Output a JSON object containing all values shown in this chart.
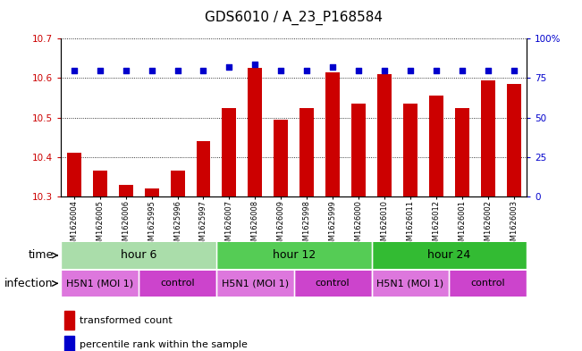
{
  "title": "GDS6010 / A_23_P168584",
  "samples": [
    "GSM1626004",
    "GSM1626005",
    "GSM1626006",
    "GSM1625995",
    "GSM1625996",
    "GSM1625997",
    "GSM1626007",
    "GSM1626008",
    "GSM1626009",
    "GSM1625998",
    "GSM1625999",
    "GSM1626000",
    "GSM1626010",
    "GSM1626011",
    "GSM1626012",
    "GSM1626001",
    "GSM1626002",
    "GSM1626003"
  ],
  "bar_values": [
    10.41,
    10.365,
    10.33,
    10.32,
    10.365,
    10.44,
    10.525,
    10.625,
    10.495,
    10.525,
    10.615,
    10.535,
    10.61,
    10.535,
    10.555,
    10.525,
    10.595,
    10.585
  ],
  "dot_values": [
    80,
    80,
    80,
    80,
    80,
    80,
    82,
    84,
    80,
    80,
    82,
    80,
    80,
    80,
    80,
    80,
    80,
    80
  ],
  "ylim_left": [
    10.3,
    10.7
  ],
  "ylim_right": [
    0,
    100
  ],
  "yticks_left": [
    10.3,
    10.4,
    10.5,
    10.6,
    10.7
  ],
  "yticks_right": [
    0,
    25,
    50,
    75,
    100
  ],
  "ytick_right_labels": [
    "0",
    "25",
    "50",
    "75",
    "100%"
  ],
  "bar_color": "#cc0000",
  "dot_color": "#0000cc",
  "bar_bottom": 10.3,
  "time_groups": [
    {
      "label": "hour 6",
      "start": 0,
      "end": 6,
      "color": "#aaddaa"
    },
    {
      "label": "hour 12",
      "start": 6,
      "end": 12,
      "color": "#55cc55"
    },
    {
      "label": "hour 24",
      "start": 12,
      "end": 18,
      "color": "#33bb33"
    }
  ],
  "infection_h5n1_color": "#dd77dd",
  "infection_ctrl_color": "#cc44cc",
  "infection_groups": [
    {
      "label": "H5N1 (MOI 1)",
      "start": 0,
      "end": 3
    },
    {
      "label": "control",
      "start": 3,
      "end": 6
    },
    {
      "label": "H5N1 (MOI 1)",
      "start": 6,
      "end": 9
    },
    {
      "label": "control",
      "start": 9,
      "end": 12
    },
    {
      "label": "H5N1 (MOI 1)",
      "start": 12,
      "end": 15
    },
    {
      "label": "control",
      "start": 15,
      "end": 18
    }
  ],
  "legend_items": [
    {
      "label": "transformed count",
      "color": "#cc0000"
    },
    {
      "label": "percentile rank within the sample",
      "color": "#0000cc"
    }
  ],
  "time_label": "time",
  "infection_label": "infection",
  "title_fontsize": 11,
  "tick_fontsize": 7.5,
  "label_fontsize": 9,
  "bar_label_fontsize": 9,
  "sample_fontsize": 6,
  "n": 18
}
